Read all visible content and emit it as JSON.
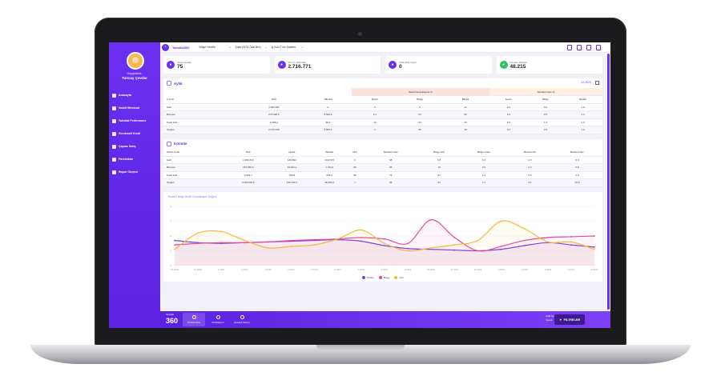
{
  "colors": {
    "accent": "#6b2ff0",
    "pink": "#e8479c",
    "orange": "#f6b93b",
    "purple": "#7a3cf0"
  },
  "user": {
    "greeting": "Hoşgeldiniz,",
    "name": "Tuncay Çevdar"
  },
  "sidebar": {
    "items": [
      {
        "label": "Anasayfa",
        "icon": "home-icon"
      },
      {
        "label": "Vadeli Mevduat",
        "icon": "deposit-icon"
      },
      {
        "label": "Tahsilat Performans",
        "icon": "performance-icon"
      },
      {
        "label": "Gecikmeli Kredi",
        "icon": "credit-icon"
      },
      {
        "label": "Çapraz Satış",
        "icon": "cross-sell-icon"
      },
      {
        "label": "Farklılıklar",
        "icon": "diff-icon"
      },
      {
        "label": "Rapor Oluştur",
        "icon": "report-icon"
      }
    ]
  },
  "topbar": {
    "app_title": "Tahsilat360",
    "selects": [
      "Bölge Hedefe",
      "Şube (NTS Özel Brn)",
      "İş Kolu Tüm Şubeler"
    ]
  },
  "cards": [
    {
      "label": "Ortam Hedefi",
      "value": "75",
      "icon": "target-icon",
      "color": "#6b2ff0"
    },
    {
      "label": "Son Ay Risk Rak",
      "value": "2.716.771",
      "icon": "chart-icon",
      "color": "#6b2ff0"
    },
    {
      "label": "Kritik Risk Tutarı",
      "value": "0",
      "icon": "cart-icon",
      "color": "#6b2ff0"
    },
    {
      "label": "Kümüle Tahsilat",
      "value": "48.215",
      "icon": "money-icon",
      "color": "#2fbf5f"
    }
  ],
  "aylik": {
    "title": "Aylık",
    "period": "12-2020",
    "group_headers": [
      "Hedef Gerçekleşme %",
      "Tahsilat Oranı %"
    ],
    "columns": [
      "İş Kolu",
      "Risk",
      "Tahsilat",
      "Şeçim",
      "Bölge",
      "Banka",
      "Şeçim",
      "Bölge",
      "Banka"
    ],
    "rows": [
      [
        "Kobi",
        "2.095.089",
        "0",
        "0",
        "9",
        "12",
        "0.0",
        "0.6",
        "1.0"
      ],
      [
        "Bireysel",
        "275.495,6",
        "6.683,9",
        "6.1",
        "63",
        "90",
        "2.2",
        "0.5",
        "1.4"
      ],
      [
        "Kredi Kart",
        "6.388,2",
        "60,1",
        "10",
        "64",
        "19",
        "0.9",
        "1.0",
        "1.6"
      ],
      [
        "Toplam",
        "2.370.019",
        "6.663,6",
        "1",
        "20",
        "19",
        "0.2",
        "0.3",
        "1.4"
      ]
    ]
  },
  "kumule": {
    "title": "Kümüle",
    "columns": [
      "Tahsis Kodu",
      "Risk",
      "Hedef",
      "Tahsilat",
      "H/G",
      "Tahsilat Oranı",
      "Bölge H/G",
      "Bölge Oranı",
      "Banka H/G",
      "Banka Oranı"
    ],
    "rows": [
      [
        "Kobi",
        "1.181.816",
        "145.832",
        "34.079.5",
        "0",
        "58",
        "0.8",
        "1.6",
        "2.3",
        "6.9"
      ],
      [
        "Bireysel",
        "279.665,6",
        "19.912,2",
        "1.764,3",
        "66",
        "96",
        "16",
        "2.0",
        "2.3",
        "2.9"
      ],
      [
        "Kredi Kart",
        "6.832,1",
        "790,8",
        "655,6",
        "86",
        "79",
        "87",
        "2.1",
        "6.6",
        "2.9"
      ],
      [
        "Toplam",
        "2.253.993,6",
        "145.493,1",
        "48.254,2",
        "7",
        "69",
        "93",
        "1.7",
        "5.1",
        "46.2"
      ]
    ]
  },
  "chart_data": {
    "type": "line",
    "title": "Banka / Bölge Hedef Gerçekleşme Dağılım",
    "x": [
      "11.2020",
      "12.2020",
      "1.2021",
      "2.2021",
      "3.2021",
      "4.2021",
      "5.2021",
      "6.2021",
      "7.2021",
      "8.2021",
      "9.2021",
      "10.2021",
      "11.2021",
      "12.2021",
      "1.2022",
      "2.2022",
      "3.2022",
      "4.2022",
      "5.2022"
    ],
    "yticks": [
      "0",
      "1",
      "2",
      "3",
      "4"
    ],
    "ylim": [
      0,
      4
    ],
    "series": [
      {
        "name": "Banka",
        "color": "#7a3cf0",
        "values": [
          1.7,
          1.55,
          1.5,
          1.55,
          1.6,
          1.65,
          1.7,
          1.75,
          1.65,
          1.35,
          1.15,
          1.1,
          1.05,
          1.0,
          1.1,
          1.35,
          1.55,
          1.4,
          1.25
        ]
      },
      {
        "name": "Bölge",
        "color": "#e8479c",
        "values": [
          1.4,
          1.5,
          1.55,
          1.55,
          1.6,
          1.7,
          1.75,
          1.8,
          1.9,
          1.8,
          1.5,
          3.1,
          1.9,
          1.0,
          1.3,
          1.7,
          1.9,
          1.95,
          2.0
        ]
      },
      {
        "name": "H/G",
        "color": "#f6b93b",
        "values": [
          1.1,
          2.2,
          2.3,
          1.7,
          1.2,
          1.3,
          1.4,
          1.8,
          2.4,
          1.5,
          1.0,
          1.2,
          1.4,
          1.7,
          3.0,
          2.5,
          1.6,
          1.6,
          1.1
        ]
      }
    ]
  },
  "bottombar": {
    "logo_small": "Tahsilat",
    "logo_big": "360",
    "nav": [
      {
        "label": "Performans",
        "icon": "performance-icon"
      },
      {
        "label": "Simülasyon",
        "icon": "simulation-icon"
      },
      {
        "label": "Hesaplı Gazey",
        "icon": "calc-icon"
      }
    ],
    "info1": "Aktif Ay:",
    "info2": "Mesut",
    "filter_label": "FİLTRELER"
  }
}
